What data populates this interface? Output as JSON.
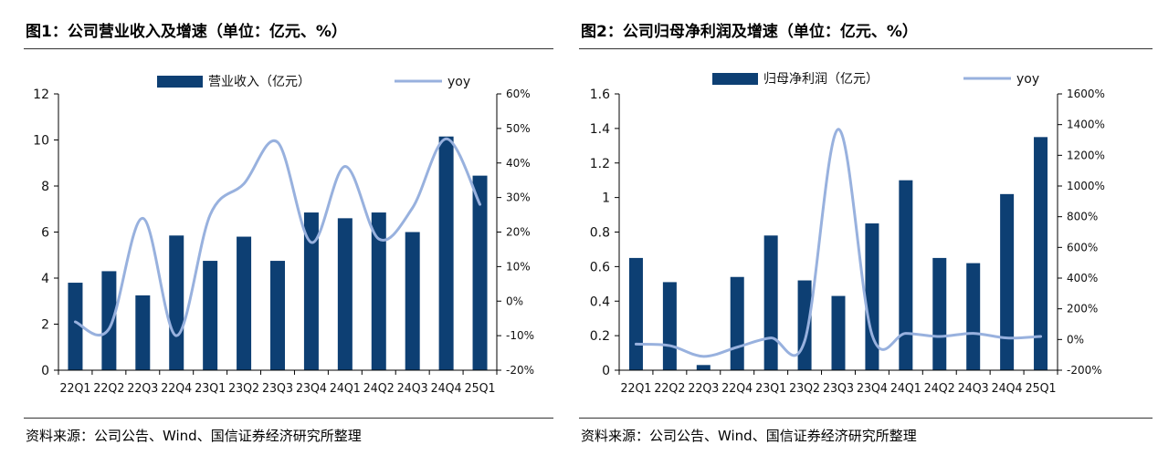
{
  "figures": [
    {
      "title": "图1：公司营业收入及增速（单位：亿元、%）",
      "source": "资料来源：公司公告、Wind、国信证券经济研究所整理"
    },
    {
      "title": "图2：公司归母净利润及增速（单位：亿元、%）",
      "source": "资料来源：公司公告、Wind、国信证券经济研究所整理"
    }
  ],
  "colors": {
    "bar": "#0d3f73",
    "line": "#98b1de",
    "axis": "#000000"
  },
  "chart_data": [
    {
      "type": "bar",
      "combo": "bar+line (secondary axis)",
      "categories": [
        "22Q1",
        "22Q2",
        "22Q3",
        "22Q4",
        "23Q1",
        "23Q2",
        "23Q3",
        "23Q4",
        "24Q1",
        "24Q2",
        "24Q3",
        "24Q4",
        "25Q1"
      ],
      "series": [
        {
          "name": "营业收入（亿元）",
          "type": "bar",
          "axis": "left",
          "values": [
            3.8,
            4.3,
            3.25,
            5.85,
            4.75,
            5.8,
            4.75,
            6.85,
            6.6,
            6.85,
            6.0,
            10.15,
            8.45
          ]
        },
        {
          "name": "yoy",
          "type": "line",
          "axis": "right",
          "smooth": true,
          "values": [
            -6,
            -8,
            24,
            -10,
            25,
            34,
            46,
            17,
            39,
            18,
            27,
            47,
            28
          ]
        }
      ],
      "ylim": [
        0,
        12
      ],
      "yticks": [
        0,
        2,
        4,
        6,
        8,
        10,
        12
      ],
      "y2lim": [
        -20,
        60
      ],
      "y2ticks": [
        "-20%",
        "-10%",
        "0%",
        "10%",
        "20%",
        "30%",
        "40%",
        "50%",
        "60%"
      ],
      "legend": "top-center",
      "grid": false
    },
    {
      "type": "bar",
      "combo": "bar+line (secondary axis)",
      "categories": [
        "22Q1",
        "22Q2",
        "22Q3",
        "22Q4",
        "23Q1",
        "23Q2",
        "23Q3",
        "23Q4",
        "24Q1",
        "24Q2",
        "24Q3",
        "24Q4",
        "25Q1"
      ],
      "series": [
        {
          "name": "归母净利润（亿元）",
          "type": "bar",
          "axis": "left",
          "values": [
            0.65,
            0.51,
            0.03,
            0.54,
            0.78,
            0.52,
            0.43,
            0.85,
            1.1,
            0.65,
            0.62,
            1.02,
            1.35
          ]
        },
        {
          "name": "yoy",
          "type": "line",
          "axis": "right",
          "smooth": true,
          "values": [
            -30,
            -40,
            -110,
            -50,
            10,
            -10,
            1370,
            30,
            40,
            20,
            40,
            10,
            20
          ]
        }
      ],
      "ylim": [
        0,
        1.6
      ],
      "yticks": [
        "0",
        "0.2",
        "0.4",
        "0.6",
        "0.8",
        "1",
        "1.2",
        "1.4",
        "1.6"
      ],
      "y2lim": [
        -200,
        1600
      ],
      "y2ticks": [
        "-200%",
        "0%",
        "200%",
        "400%",
        "600%",
        "800%",
        "1000%",
        "1200%",
        "1400%",
        "1600%"
      ],
      "legend": "top-center",
      "grid": false
    }
  ]
}
